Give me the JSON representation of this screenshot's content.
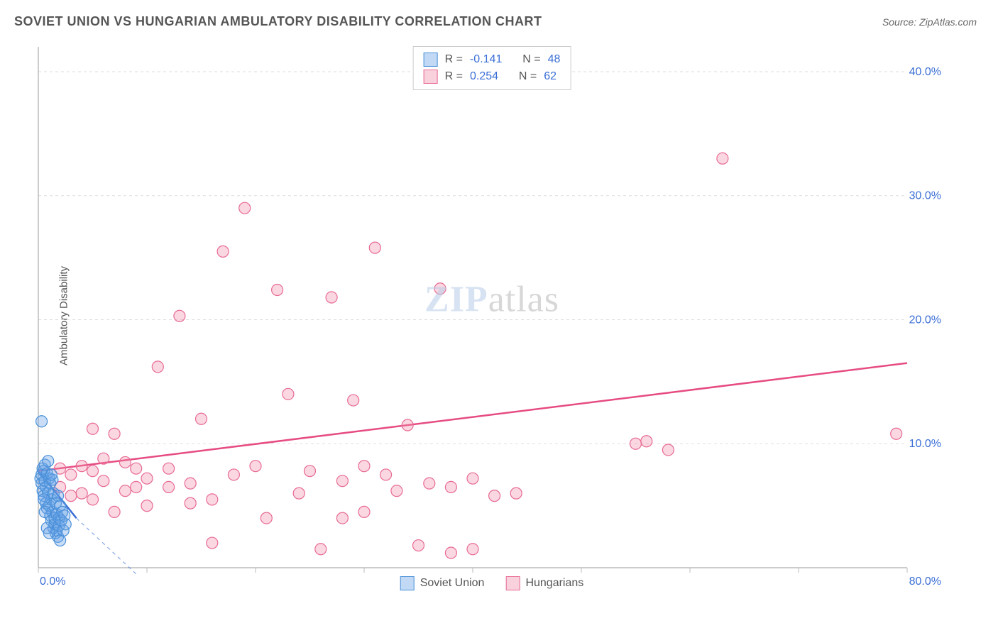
{
  "header": {
    "title": "SOVIET UNION VS HUNGARIAN AMBULATORY DISABILITY CORRELATION CHART",
    "source_label": "Source: ZipAtlas.com"
  },
  "watermark": {
    "zip": "ZIP",
    "atlas": "atlas"
  },
  "chart": {
    "type": "scatter",
    "background_color": "#ffffff",
    "grid_color": "#dddddd",
    "axis_color": "#bbbbbb",
    "tick_color": "#bbbbbb",
    "text_color": "#555555",
    "y_axis_label": "Ambulatory Disability",
    "xlim": [
      0,
      80
    ],
    "ylim": [
      0,
      42
    ],
    "x_ticks": [
      0,
      10,
      20,
      30,
      40,
      50,
      60,
      70,
      80
    ],
    "x_tick_labels": [
      "0.0%",
      "",
      "",
      "",
      "",
      "",
      "",
      "",
      "80.0%"
    ],
    "y_ticks": [
      10,
      20,
      30,
      40
    ],
    "y_tick_labels": [
      "10.0%",
      "20.0%",
      "30.0%",
      "40.0%"
    ],
    "y_tick_color": "#3b6fd6",
    "x_tick_color": "#3b6fd6",
    "marker_radius": 8,
    "marker_stroke_width": 1.2,
    "series": {
      "soviet": {
        "label": "Soviet Union",
        "fill": "rgba(100,160,230,0.35)",
        "stroke": "#4a90d9",
        "r_value": "-0.141",
        "n_value": "48",
        "trend": {
          "x1": 0,
          "y1": 7.8,
          "x2": 3.5,
          "y2": 4.0,
          "dash_ext_x": 9,
          "dash_ext_y": -0.5,
          "color": "#3b6fd6",
          "width": 2.5
        },
        "points": [
          [
            0.2,
            7.2
          ],
          [
            0.3,
            7.5
          ],
          [
            0.3,
            6.8
          ],
          [
            0.4,
            8.0
          ],
          [
            0.4,
            6.2
          ],
          [
            0.5,
            7.8
          ],
          [
            0.5,
            5.8
          ],
          [
            0.6,
            7.0
          ],
          [
            0.6,
            8.3
          ],
          [
            0.7,
            6.5
          ],
          [
            0.7,
            5.2
          ],
          [
            0.8,
            7.6
          ],
          [
            0.8,
            4.8
          ],
          [
            0.9,
            6.0
          ],
          [
            0.9,
            8.6
          ],
          [
            1.0,
            5.0
          ],
          [
            1.0,
            7.2
          ],
          [
            1.1,
            4.2
          ],
          [
            1.1,
            6.8
          ],
          [
            1.2,
            3.8
          ],
          [
            1.2,
            5.5
          ],
          [
            1.3,
            4.5
          ],
          [
            1.3,
            7.1
          ],
          [
            1.4,
            3.2
          ],
          [
            1.4,
            6.0
          ],
          [
            1.5,
            4.0
          ],
          [
            1.5,
            3.5
          ],
          [
            1.6,
            5.2
          ],
          [
            1.6,
            2.8
          ],
          [
            1.7,
            4.3
          ],
          [
            1.7,
            3.0
          ],
          [
            1.8,
            5.8
          ],
          [
            1.8,
            2.5
          ],
          [
            1.9,
            4.0
          ],
          [
            1.9,
            3.4
          ],
          [
            2.0,
            5.0
          ],
          [
            2.0,
            2.2
          ],
          [
            2.1,
            3.8
          ],
          [
            2.2,
            4.5
          ],
          [
            2.3,
            3.0
          ],
          [
            2.4,
            4.2
          ],
          [
            2.5,
            3.5
          ],
          [
            0.3,
            11.8
          ],
          [
            0.5,
            5.5
          ],
          [
            0.6,
            4.5
          ],
          [
            0.8,
            3.2
          ],
          [
            1.0,
            2.8
          ],
          [
            1.2,
            7.5
          ]
        ]
      },
      "hungarian": {
        "label": "Hungarians",
        "fill": "rgba(240,140,170,0.35)",
        "stroke": "#e86a94",
        "r_value": "0.254",
        "n_value": "62",
        "trend": {
          "x1": 0,
          "y1": 7.8,
          "x2": 80,
          "y2": 16.5,
          "color": "#e64b82",
          "width": 2.5
        },
        "points": [
          [
            2,
            8.0
          ],
          [
            3,
            7.5
          ],
          [
            4,
            8.2
          ],
          [
            5,
            11.2
          ],
          [
            5,
            7.8
          ],
          [
            6,
            7.0
          ],
          [
            7,
            10.8
          ],
          [
            8,
            8.5
          ],
          [
            9,
            6.5
          ],
          [
            10,
            7.2
          ],
          [
            11,
            16.2
          ],
          [
            12,
            8.0
          ],
          [
            13,
            20.3
          ],
          [
            14,
            6.8
          ],
          [
            15,
            12.0
          ],
          [
            16,
            2.0
          ],
          [
            16,
            5.5
          ],
          [
            17,
            25.5
          ],
          [
            18,
            7.5
          ],
          [
            19,
            29.0
          ],
          [
            20,
            8.2
          ],
          [
            21,
            4.0
          ],
          [
            22,
            22.4
          ],
          [
            23,
            14.0
          ],
          [
            24,
            6.0
          ],
          [
            25,
            7.8
          ],
          [
            26,
            1.5
          ],
          [
            27,
            21.8
          ],
          [
            28,
            7.0
          ],
          [
            28,
            4.0
          ],
          [
            29,
            13.5
          ],
          [
            30,
            8.2
          ],
          [
            31,
            25.8
          ],
          [
            32,
            7.5
          ],
          [
            33,
            6.2
          ],
          [
            34,
            11.5
          ],
          [
            35,
            1.8
          ],
          [
            36,
            6.8
          ],
          [
            37,
            22.5
          ],
          [
            38,
            6.5
          ],
          [
            40,
            7.2
          ],
          [
            42,
            5.8
          ],
          [
            44,
            6.0
          ],
          [
            38,
            1.2
          ],
          [
            40,
            1.5
          ],
          [
            55,
            10.0
          ],
          [
            56,
            10.2
          ],
          [
            58,
            9.5
          ],
          [
            63,
            33.0
          ],
          [
            79,
            10.8
          ],
          [
            2,
            6.5
          ],
          [
            3,
            5.8
          ],
          [
            4,
            6.0
          ],
          [
            5,
            5.5
          ],
          [
            6,
            8.8
          ],
          [
            7,
            4.5
          ],
          [
            8,
            6.2
          ],
          [
            9,
            8.0
          ],
          [
            10,
            5.0
          ],
          [
            12,
            6.5
          ],
          [
            14,
            5.2
          ],
          [
            30,
            4.5
          ]
        ]
      }
    },
    "stats_box": {
      "r_prefix": "R = ",
      "n_prefix": "N = "
    }
  }
}
